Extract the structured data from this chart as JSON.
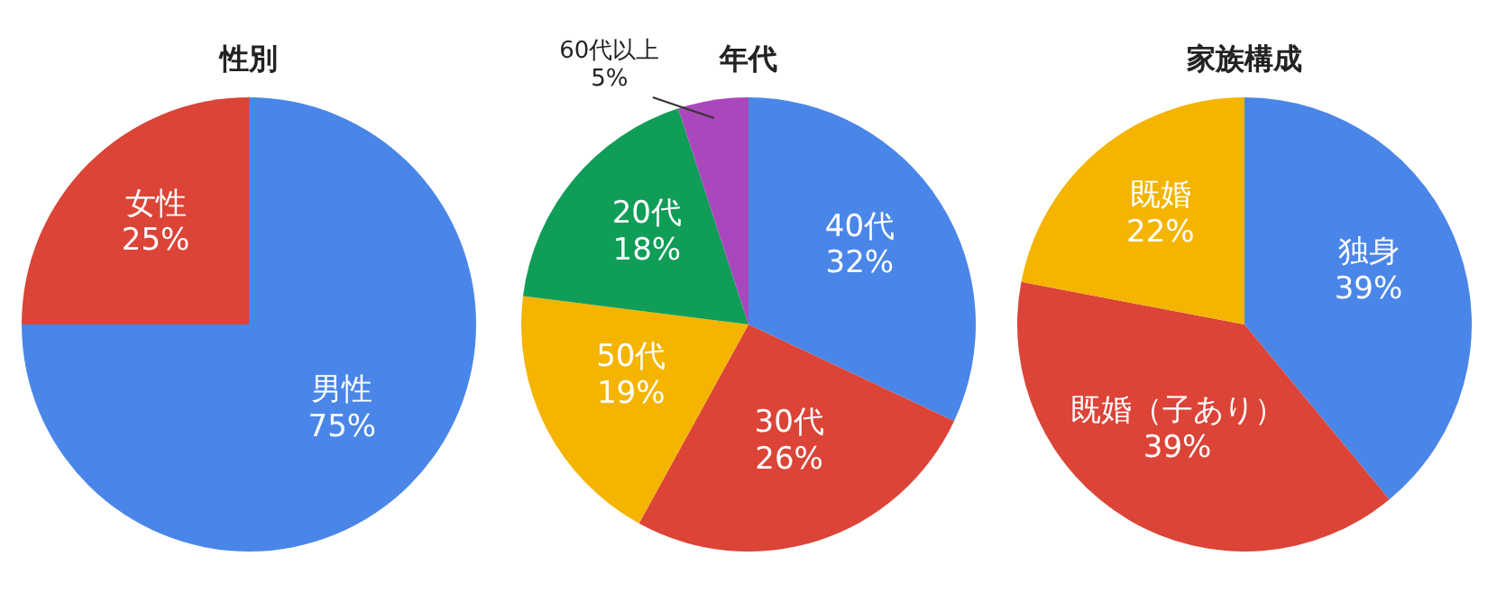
{
  "chart_data": [
    {
      "type": "pie",
      "title": "性別",
      "categories": [
        "男性",
        "女性"
      ],
      "values": [
        75,
        25
      ],
      "colors": [
        "#4a86e8",
        "#db4437"
      ],
      "value_labels": [
        "75%",
        "25%"
      ]
    },
    {
      "type": "pie",
      "title": "年代",
      "categories": [
        "40代",
        "30代",
        "50代",
        "20代",
        "60代以上"
      ],
      "values": [
        32,
        26,
        19,
        18,
        5
      ],
      "colors": [
        "#4a86e8",
        "#db4437",
        "#f4b400",
        "#0f9d58",
        "#ab47bc"
      ],
      "value_labels": [
        "32%",
        "26%",
        "19%",
        "18%",
        "5%"
      ]
    },
    {
      "type": "pie",
      "title": "家族構成",
      "categories": [
        "独身",
        "既婚（子あり）",
        "既婚"
      ],
      "values": [
        39,
        39,
        22
      ],
      "colors": [
        "#4a86e8",
        "#db4437",
        "#f4b400"
      ],
      "value_labels": [
        "39%",
        "39%",
        "22%"
      ]
    }
  ]
}
